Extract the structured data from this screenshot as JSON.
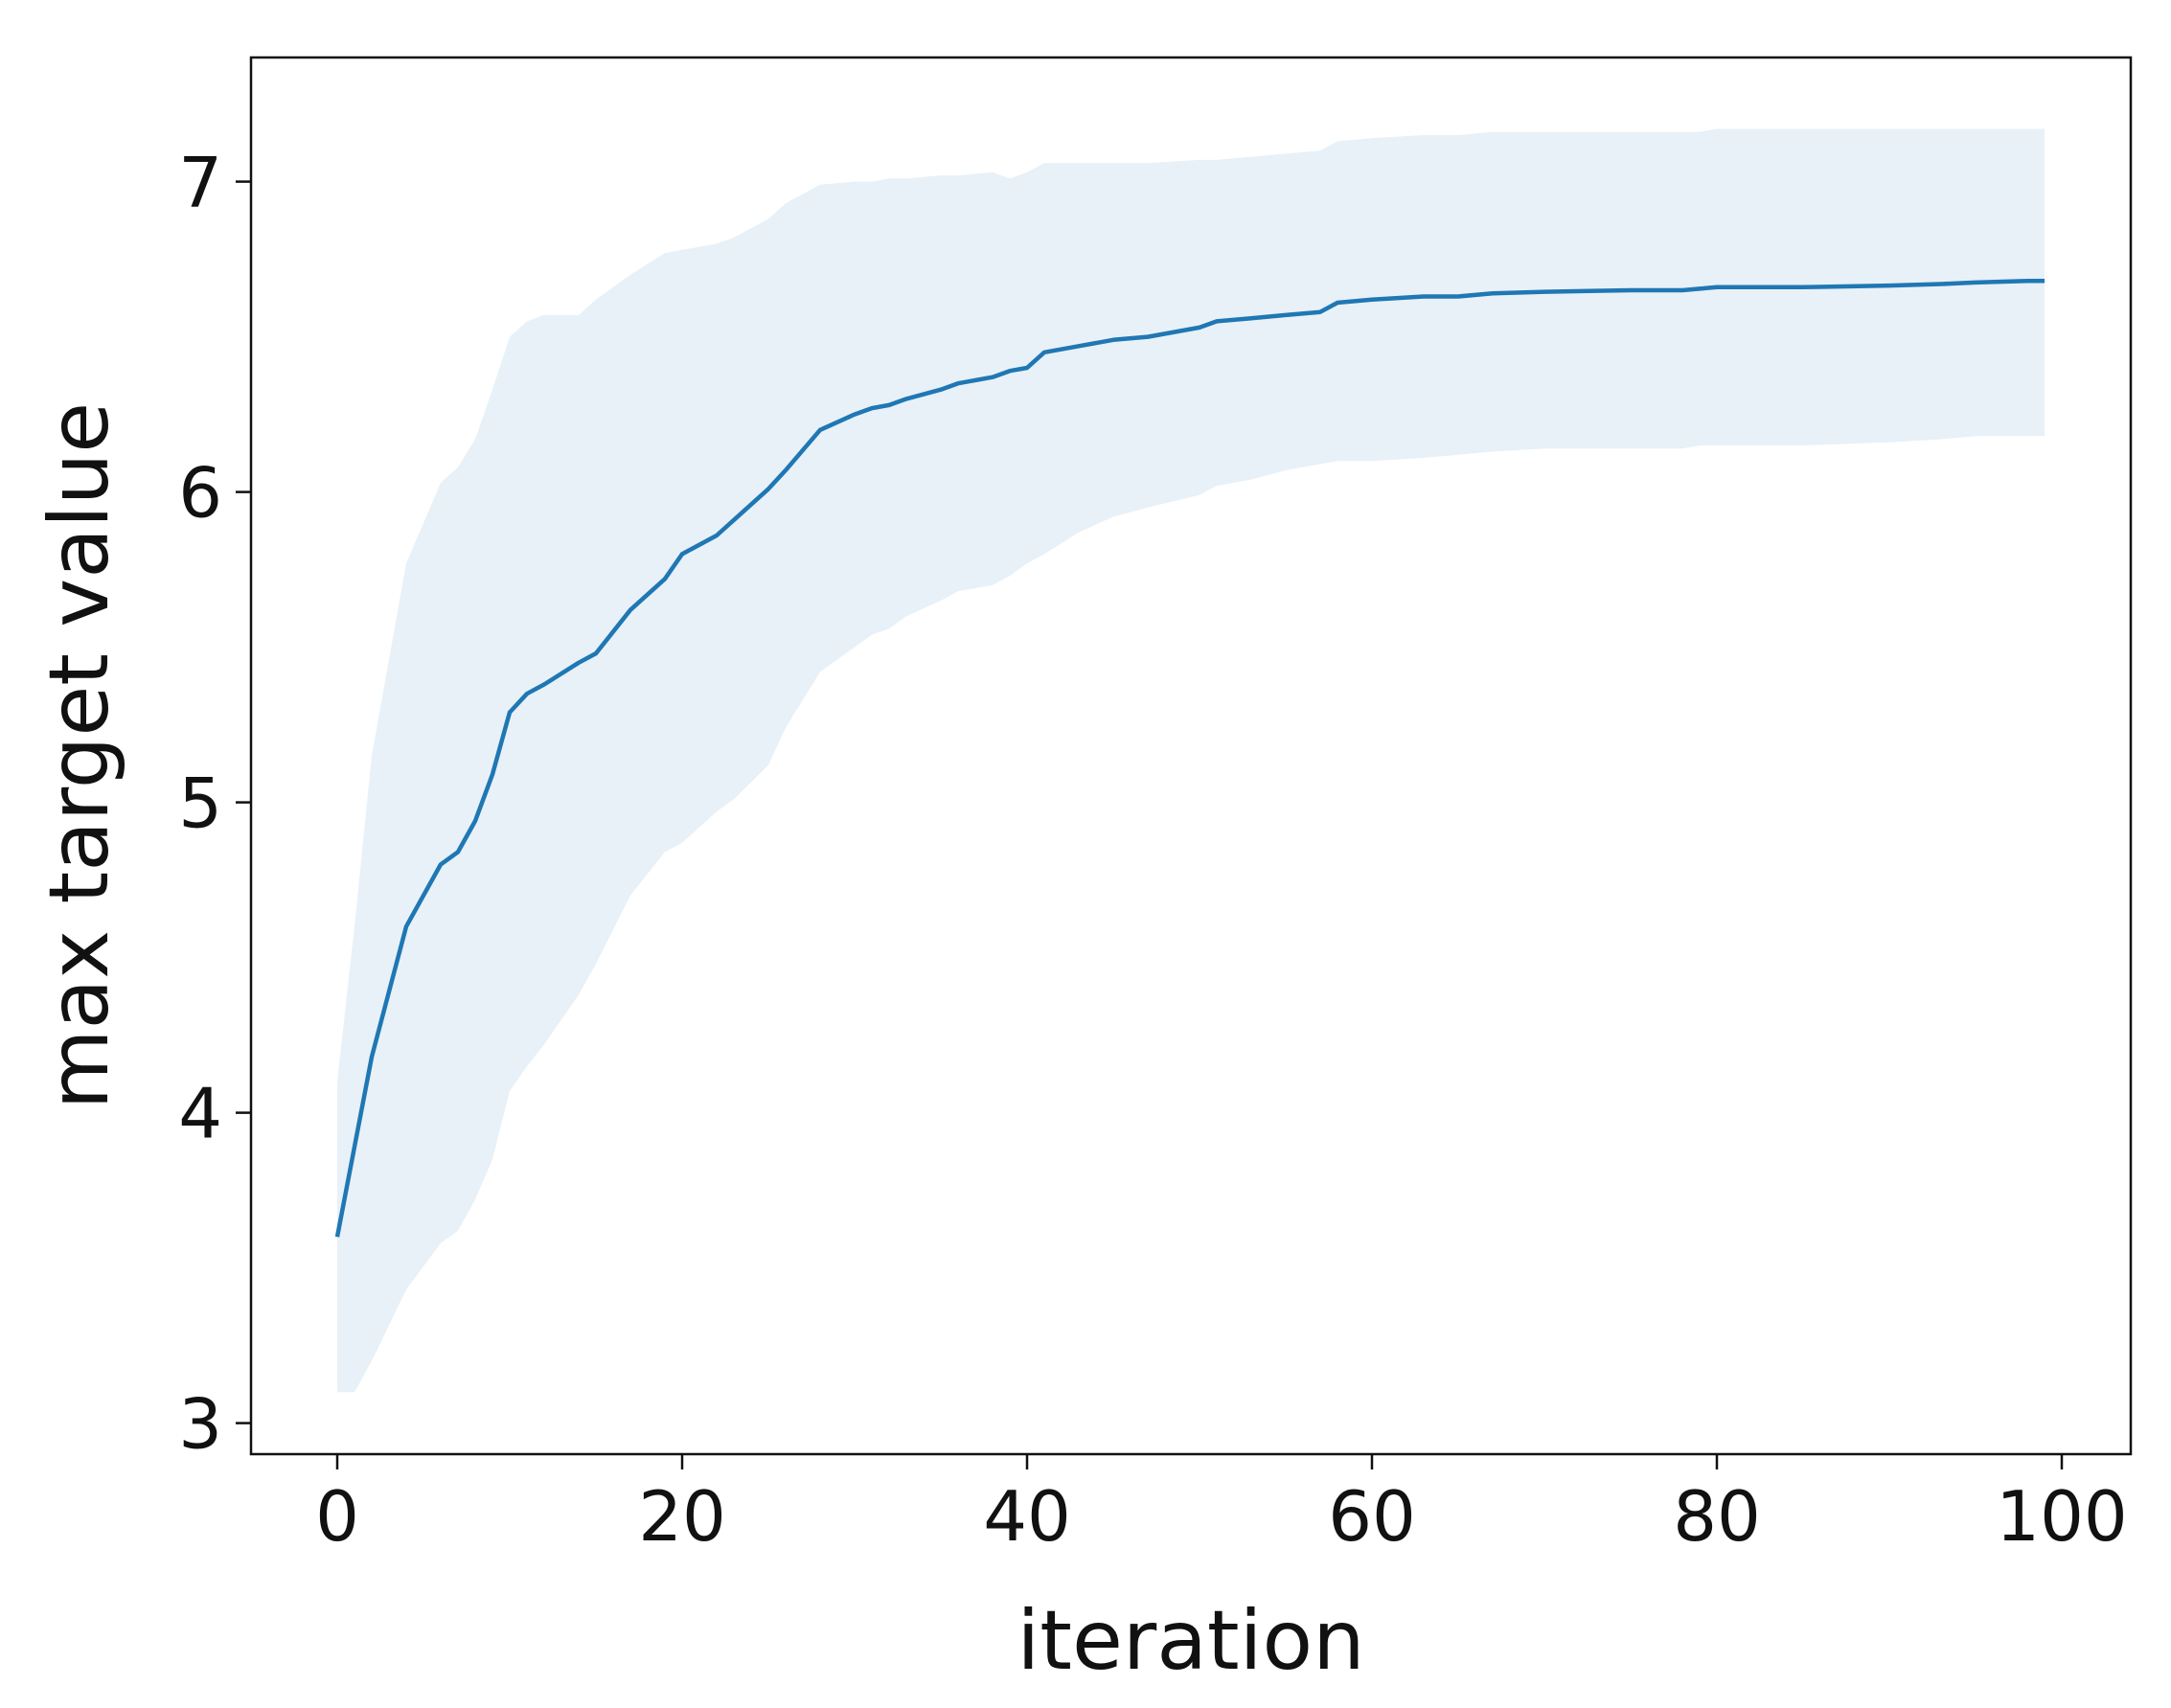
{
  "chart_data": {
    "type": "line",
    "xlabel": "iteration",
    "ylabel": "max target value",
    "xlim": [
      -5,
      104
    ],
    "ylim": [
      2.9,
      7.4
    ],
    "xticks": [
      0,
      20,
      40,
      60,
      80,
      100
    ],
    "yticks": [
      3,
      4,
      5,
      6,
      7
    ],
    "xtick_labels": [
      "0",
      "20",
      "40",
      "60",
      "80",
      "100"
    ],
    "ytick_labels": [
      "3",
      "4",
      "5",
      "6",
      "7"
    ],
    "grid": false,
    "legend": "none",
    "line_color": "#1f77b4",
    "band_color": "#1f77b4",
    "band_opacity": 0.1,
    "series": [
      {
        "x": [
          0,
          1,
          2,
          4,
          6,
          7,
          8,
          9,
          10,
          11,
          12,
          14,
          15,
          17,
          19,
          20,
          22,
          23,
          25,
          26,
          28,
          30,
          31,
          32,
          33,
          35,
          36,
          38,
          39,
          40,
          41,
          43,
          45,
          47,
          50,
          51,
          53,
          55,
          57,
          58,
          60,
          63,
          65,
          67,
          70,
          75,
          78,
          79,
          80,
          85,
          90,
          93,
          95,
          98,
          99
        ],
        "y": [
          3.6,
          3.89,
          4.18,
          4.6,
          4.8,
          4.84,
          4.94,
          5.09,
          5.29,
          5.35,
          5.38,
          5.45,
          5.48,
          5.62,
          5.72,
          5.8,
          5.86,
          5.91,
          6.01,
          6.07,
          6.2,
          6.25,
          6.27,
          6.28,
          6.3,
          6.33,
          6.35,
          6.37,
          6.39,
          6.4,
          6.45,
          6.47,
          6.49,
          6.5,
          6.53,
          6.55,
          6.56,
          6.57,
          6.58,
          6.61,
          6.62,
          6.63,
          6.63,
          6.64,
          6.645,
          6.65,
          6.65,
          6.655,
          6.66,
          6.66,
          6.665,
          6.67,
          6.675,
          6.68,
          6.68
        ],
        "upper": [
          4.1,
          4.6,
          5.15,
          5.77,
          6.03,
          6.08,
          6.17,
          6.33,
          6.5,
          6.55,
          6.57,
          6.57,
          6.62,
          6.7,
          6.77,
          6.78,
          6.8,
          6.82,
          6.88,
          6.93,
          6.99,
          7.0,
          7.0,
          7.01,
          7.01,
          7.02,
          7.02,
          7.03,
          7.01,
          7.03,
          7.06,
          7.06,
          7.06,
          7.06,
          7.07,
          7.07,
          7.08,
          7.09,
          7.1,
          7.13,
          7.14,
          7.15,
          7.15,
          7.16,
          7.16,
          7.16,
          7.16,
          7.16,
          7.17,
          7.17,
          7.17,
          7.17,
          7.17,
          7.17,
          7.17
        ],
        "lower": [
          3.1,
          3.1,
          3.2,
          3.43,
          3.58,
          3.62,
          3.72,
          3.85,
          4.07,
          4.15,
          4.22,
          4.38,
          4.48,
          4.7,
          4.84,
          4.87,
          4.97,
          5.01,
          5.12,
          5.24,
          5.42,
          5.5,
          5.54,
          5.56,
          5.6,
          5.65,
          5.68,
          5.7,
          5.73,
          5.77,
          5.8,
          5.87,
          5.92,
          5.95,
          5.99,
          6.02,
          6.04,
          6.07,
          6.09,
          6.1,
          6.1,
          6.11,
          6.12,
          6.13,
          6.14,
          6.14,
          6.14,
          6.15,
          6.15,
          6.15,
          6.16,
          6.17,
          6.18,
          6.18,
          6.18
        ]
      }
    ]
  }
}
